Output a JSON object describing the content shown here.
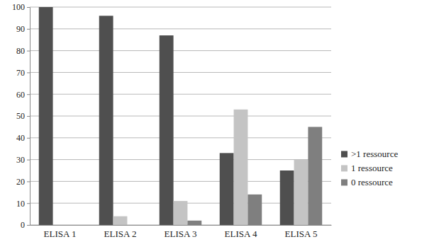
{
  "chart_data": {
    "type": "bar",
    "categories": [
      "ELISA 1",
      "ELISA 2",
      "ELISA 3",
      "ELISA 4",
      "ELISA 5"
    ],
    "series": [
      {
        "name": ">1 ressource",
        "color": "#4f4f4f",
        "values": [
          100,
          96,
          87,
          33,
          25
        ]
      },
      {
        "name": "1 ressource",
        "color": "#c4c4c4",
        "values": [
          0,
          4,
          11,
          53,
          30
        ]
      },
      {
        "name": "0 ressource",
        "color": "#7f7f7f",
        "values": [
          0,
          0,
          2,
          14,
          45
        ]
      }
    ],
    "ylim": [
      0,
      100
    ],
    "yticks": [
      0,
      10,
      20,
      30,
      40,
      50,
      60,
      70,
      80,
      90,
      100
    ],
    "grid": true,
    "legend": "right"
  }
}
